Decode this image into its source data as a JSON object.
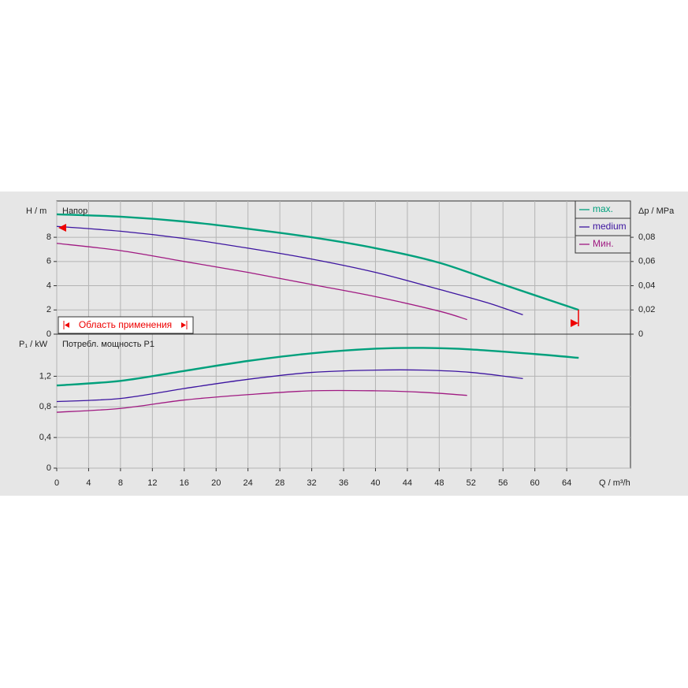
{
  "chart_data": [
    {
      "type": "line",
      "ylabel": "H / m",
      "title": "Напор",
      "y2label": "Δp / MPa",
      "annotation": "Область применения",
      "xlim": [
        0,
        72
      ],
      "xticks": [
        0,
        4,
        8,
        12,
        16,
        20,
        24,
        28,
        32,
        36,
        40,
        44,
        48,
        52,
        56,
        60,
        64
      ],
      "ylim": [
        0,
        11
      ],
      "yticks": [
        0,
        2,
        4,
        6,
        8
      ],
      "y2lim": [
        0,
        0.11
      ],
      "y2ticks": [
        0,
        {
          "value": 0.02,
          "label": "0,02"
        },
        {
          "value": 0.04,
          "label": "0,04"
        },
        {
          "value": 0.06,
          "label": "0,06"
        },
        {
          "value": 0.08,
          "label": "0,08"
        }
      ],
      "grid": true,
      "legend": "upper right",
      "series": [
        {
          "name": "max.",
          "color": "#00a07c",
          "x": [
            0,
            8,
            16,
            24,
            32,
            40,
            48,
            56,
            65.5
          ],
          "values": [
            9.9,
            9.7,
            9.3,
            8.7,
            8.0,
            7.1,
            5.9,
            4.1,
            2.0
          ]
        },
        {
          "name": "medium",
          "color": "#3c14a0",
          "x": [
            0,
            8,
            16,
            24,
            32,
            40,
            48,
            54,
            58.5
          ],
          "values": [
            8.9,
            8.5,
            7.9,
            7.1,
            6.2,
            5.1,
            3.7,
            2.6,
            1.6
          ]
        },
        {
          "name": "Мин.",
          "color": "#a01a82",
          "x": [
            0,
            8,
            16,
            24,
            32,
            40,
            48,
            51.5
          ],
          "values": [
            7.5,
            6.9,
            6.0,
            5.1,
            4.1,
            3.1,
            1.9,
            1.2
          ]
        }
      ]
    },
    {
      "type": "line",
      "ylabel": "P₁ / kW",
      "title": "Потребл. мощность P1",
      "xlabel": "Q / m³/h",
      "xlim": [
        0,
        72
      ],
      "xticks": [
        0,
        4,
        8,
        12,
        16,
        20,
        24,
        28,
        32,
        36,
        40,
        44,
        48,
        52,
        56,
        60,
        64
      ],
      "ylim": [
        0,
        1.75
      ],
      "yticks": [
        0,
        {
          "value": 0.4,
          "label": "0,4"
        },
        {
          "value": 0.8,
          "label": "0,8"
        },
        {
          "value": 1.2,
          "label": "1,2"
        }
      ],
      "grid": true,
      "series": [
        {
          "color": "#00a07c",
          "x": [
            0,
            8,
            16,
            24,
            32,
            40,
            46,
            52,
            60,
            65.5
          ],
          "values": [
            1.08,
            1.14,
            1.27,
            1.4,
            1.5,
            1.56,
            1.57,
            1.55,
            1.49,
            1.44
          ]
        },
        {
          "color": "#3c14a0",
          "x": [
            0,
            8,
            16,
            24,
            32,
            40,
            46,
            52,
            58.5
          ],
          "values": [
            0.87,
            0.91,
            1.04,
            1.16,
            1.25,
            1.28,
            1.28,
            1.25,
            1.17
          ]
        },
        {
          "color": "#a01a82",
          "x": [
            0,
            8,
            16,
            24,
            32,
            40,
            46,
            51.5
          ],
          "values": [
            0.73,
            0.78,
            0.89,
            0.96,
            1.01,
            1.01,
            0.99,
            0.95
          ]
        }
      ]
    }
  ]
}
